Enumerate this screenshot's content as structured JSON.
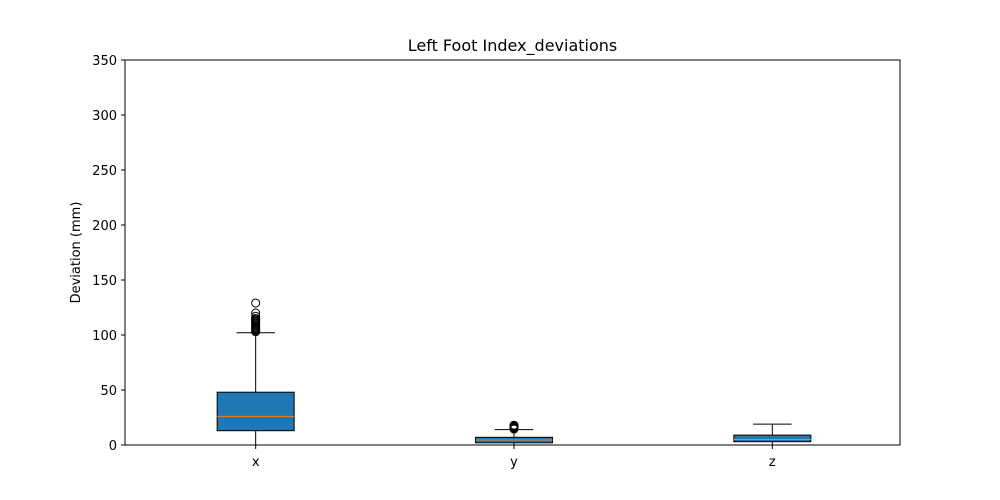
{
  "chart_data": {
    "type": "box",
    "title": "Left Foot Index_deviations",
    "xlabel": "",
    "ylabel": "Deviation (mm)",
    "ylim": [
      0,
      350
    ],
    "yticks": [
      0,
      50,
      100,
      150,
      200,
      250,
      300,
      350
    ],
    "grid": false,
    "categories": [
      "x",
      "y",
      "z"
    ],
    "boxes": [
      {
        "category": "x",
        "whisker_low": 0,
        "q1": 13,
        "median": 26,
        "q3": 48,
        "whisker_high": 102,
        "outliers": [
          103,
          104,
          105,
          106,
          107,
          108,
          109,
          110,
          111,
          112,
          113,
          114,
          115,
          117,
          120,
          129
        ]
      },
      {
        "category": "y",
        "whisker_low": 0,
        "q1": 2,
        "median": 4.5,
        "q3": 7,
        "whisker_high": 14,
        "outliers": [
          14.5,
          15,
          15.5,
          16,
          16.5,
          17,
          17.5,
          18
        ]
      },
      {
        "category": "z",
        "whisker_low": 0,
        "q1": 3,
        "median": 5,
        "q3": 9,
        "whisker_high": 19,
        "outliers": []
      }
    ],
    "colors": {
      "box_fill": "#1f77b4",
      "median": "#ff7f0e",
      "edge": "#000000"
    }
  }
}
